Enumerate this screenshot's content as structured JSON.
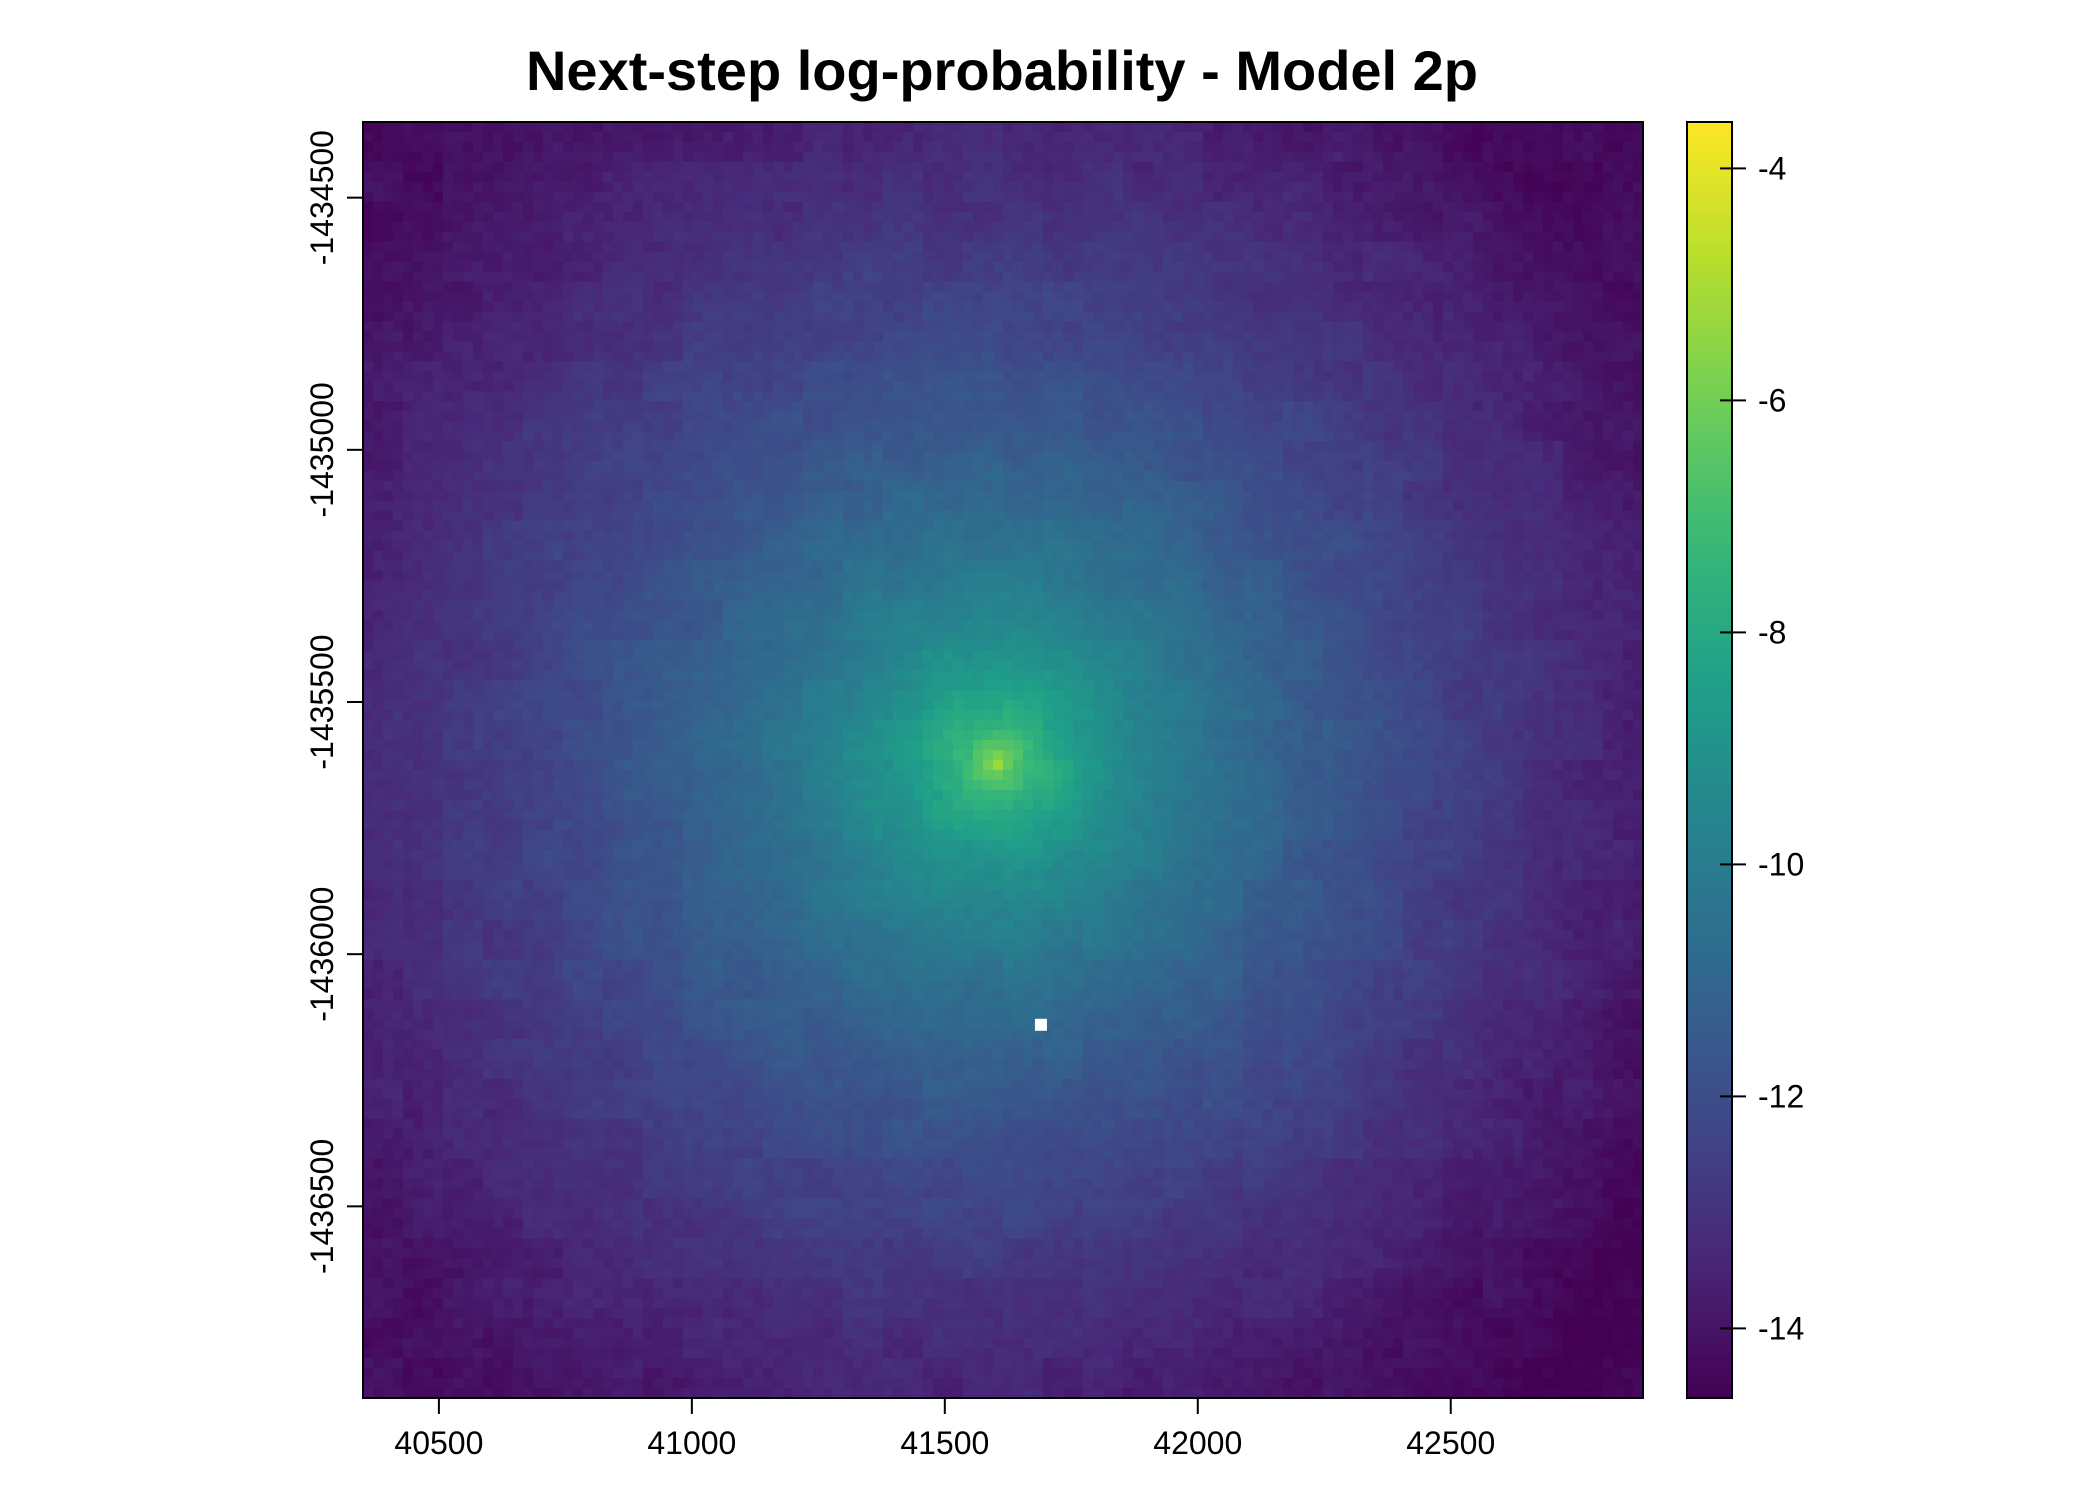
{
  "chart_data": {
    "type": "heatmap",
    "title": "Next-step log-probability - Model 2p",
    "xlabel": "",
    "ylabel": "",
    "xlim": [
      40350,
      42880
    ],
    "ylim": [
      -1436880,
      -1434350
    ],
    "x_ticks": [
      40500,
      41000,
      41500,
      42000,
      42500
    ],
    "y_ticks": [
      -1434500,
      -1435000,
      -1435500,
      -1436000,
      -1436500
    ],
    "grid": false,
    "colorscale": "viridis",
    "color_range": [
      -14.6,
      -3.6
    ],
    "colorbar_ticks": [
      -4,
      -6,
      -8,
      -10,
      -12,
      -14
    ],
    "peak": {
      "x": 41600,
      "y": -1435620,
      "value": -3.8
    },
    "corner_values": {
      "top_left": -14.2,
      "top_right": -14.3,
      "bottom_left": -14.1,
      "bottom_right": -14.6
    },
    "nodata_cell": {
      "x": 41690,
      "y": -1436140
    },
    "nodata_color": "#ffffff",
    "frame_color": "#000000"
  }
}
